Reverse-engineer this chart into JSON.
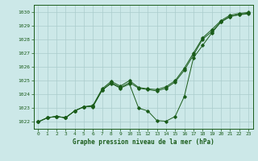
{
  "title": "Graphe pression niveau de la mer (hPa)",
  "bg_color": "#cce8e8",
  "grid_color": "#aacccc",
  "line_color": "#1a5c1a",
  "xlim": [
    -0.5,
    23.5
  ],
  "ylim": [
    1021.5,
    1030.5
  ],
  "yticks": [
    1022,
    1023,
    1024,
    1025,
    1026,
    1027,
    1028,
    1029,
    1030
  ],
  "xticks": [
    0,
    1,
    2,
    3,
    4,
    5,
    6,
    7,
    8,
    9,
    10,
    11,
    12,
    13,
    14,
    15,
    16,
    17,
    18,
    19,
    20,
    21,
    22,
    23
  ],
  "series1": [
    1022.0,
    1022.3,
    1022.4,
    1022.3,
    1022.8,
    1023.1,
    1023.2,
    1024.4,
    1024.95,
    1024.6,
    1025.0,
    1024.5,
    1024.4,
    1024.35,
    1024.55,
    1025.0,
    1025.9,
    1027.0,
    1028.1,
    1028.7,
    1029.35,
    1029.75,
    1029.88,
    1029.95
  ],
  "series2": [
    1022.0,
    1022.3,
    1022.4,
    1022.3,
    1022.8,
    1023.1,
    1023.15,
    1024.3,
    1024.85,
    1024.5,
    1024.85,
    1024.45,
    1024.35,
    1024.25,
    1024.45,
    1024.9,
    1025.75,
    1026.85,
    1028.0,
    1028.55,
    1029.25,
    1029.65,
    1029.8,
    1029.9
  ],
  "series3": [
    1022.0,
    1022.3,
    1022.4,
    1022.3,
    1022.8,
    1023.1,
    1023.1,
    1024.3,
    1024.8,
    1024.45,
    1024.75,
    1023.0,
    1022.8,
    1022.1,
    1022.05,
    1022.4,
    1023.85,
    1026.65,
    1027.55,
    1028.45,
    1029.25,
    1029.65,
    1029.78,
    1029.85
  ],
  "x_hours": [
    0,
    1,
    2,
    3,
    4,
    5,
    6,
    7,
    8,
    9,
    10,
    11,
    12,
    13,
    14,
    15,
    16,
    17,
    18,
    19,
    20,
    21,
    22,
    23
  ]
}
